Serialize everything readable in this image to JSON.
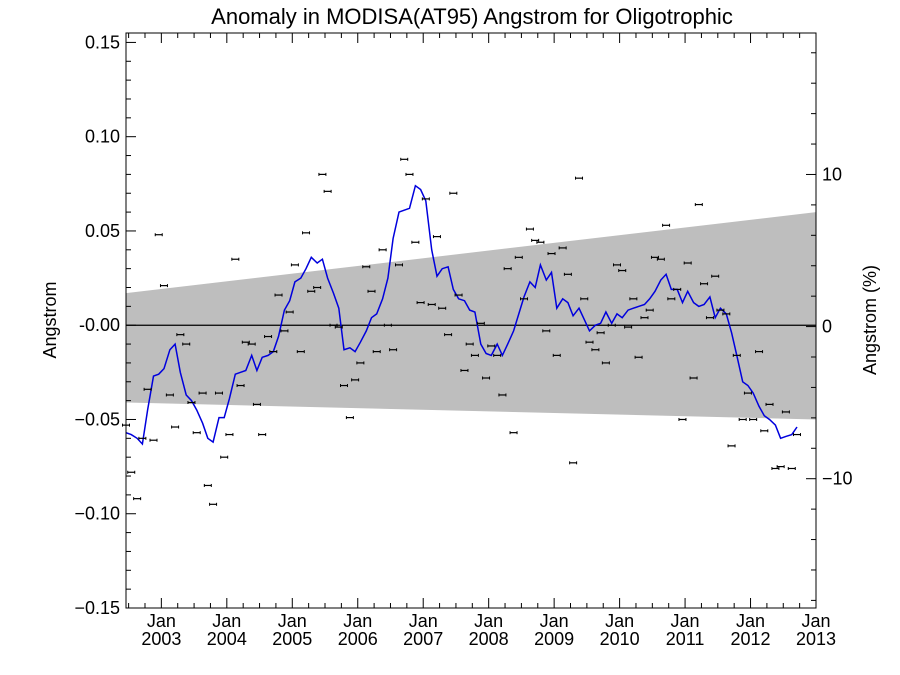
{
  "chart_data": {
    "type": "scatter",
    "title": "Anomaly in MODISA(AT95) Angstrom for Oligotrophic",
    "ylabel": "Angstrom",
    "y2label": "Angstrom (%)",
    "xlabel": "",
    "xlim": [
      2002.46,
      2013.0
    ],
    "ylim": [
      -0.15,
      0.155
    ],
    "y2lim": [
      -18.5,
      19.3
    ],
    "x_tick_labels": [
      {
        "month": "Jan",
        "year": "2003",
        "x": 2003.0
      },
      {
        "month": "Jan",
        "year": "2004",
        "x": 2004.0
      },
      {
        "month": "Jan",
        "year": "2005",
        "x": 2005.0
      },
      {
        "month": "Jan",
        "year": "2006",
        "x": 2006.0
      },
      {
        "month": "Jan",
        "year": "2007",
        "x": 2007.0
      },
      {
        "month": "Jan",
        "year": "2008",
        "x": 2008.0
      },
      {
        "month": "Jan",
        "year": "2009",
        "x": 2009.0
      },
      {
        "month": "Jan",
        "year": "2010",
        "x": 2010.0
      },
      {
        "month": "Jan",
        "year": "2011",
        "x": 2011.0
      },
      {
        "month": "Jan",
        "year": "2012",
        "x": 2012.0
      },
      {
        "month": "Jan",
        "year": "2013",
        "x": 2013.0
      }
    ],
    "y_ticks": [
      {
        "label": "0.15",
        "value": 0.15
      },
      {
        "label": "0.10",
        "value": 0.1
      },
      {
        "label": "0.05",
        "value": 0.05
      },
      {
        "label": "-0.00",
        "value": 0.0
      },
      {
        "label": "−0.05",
        "value": -0.05
      },
      {
        "label": "−0.10",
        "value": -0.1
      },
      {
        "label": "−0.15",
        "value": -0.15
      }
    ],
    "y2_ticks": [
      {
        "label": "10",
        "value": 10
      },
      {
        "label": "0",
        "value": 0
      },
      {
        "label": "−10",
        "value": -10
      }
    ],
    "zero_line": 0.0,
    "confidence_band": {
      "x": [
        2002.46,
        2013.0
      ],
      "upper": [
        0.017,
        0.06
      ],
      "lower": [
        -0.041,
        -0.05
      ],
      "color": "#bebebe"
    },
    "series": [
      {
        "kind": "points",
        "color": "#000000",
        "points": [
          [
            2002.46,
            -0.053
          ],
          [
            2002.54,
            -0.078
          ],
          [
            2002.63,
            -0.092
          ],
          [
            2002.71,
            -0.06
          ],
          [
            2002.79,
            -0.034
          ],
          [
            2002.88,
            -0.061
          ],
          [
            2002.96,
            0.048
          ],
          [
            2003.04,
            0.021
          ],
          [
            2003.13,
            -0.037
          ],
          [
            2003.21,
            -0.054
          ],
          [
            2003.29,
            -0.005
          ],
          [
            2003.38,
            -0.01
          ],
          [
            2003.46,
            -0.041
          ],
          [
            2003.54,
            -0.057
          ],
          [
            2003.63,
            -0.036
          ],
          [
            2003.71,
            -0.085
          ],
          [
            2003.79,
            -0.095
          ],
          [
            2003.88,
            -0.036
          ],
          [
            2003.96,
            -0.07
          ],
          [
            2004.04,
            -0.058
          ],
          [
            2004.13,
            0.035
          ],
          [
            2004.21,
            -0.032
          ],
          [
            2004.29,
            -0.009
          ],
          [
            2004.38,
            -0.01
          ],
          [
            2004.46,
            -0.042
          ],
          [
            2004.54,
            -0.058
          ],
          [
            2004.63,
            -0.006
          ],
          [
            2004.71,
            -0.014
          ],
          [
            2004.79,
            0.016
          ],
          [
            2004.88,
            -0.003
          ],
          [
            2004.96,
            0.007
          ],
          [
            2005.04,
            0.032
          ],
          [
            2005.13,
            -0.014
          ],
          [
            2005.21,
            0.049
          ],
          [
            2005.29,
            0.018
          ],
          [
            2005.38,
            0.02
          ],
          [
            2005.46,
            0.08
          ],
          [
            2005.54,
            0.071
          ],
          [
            2005.63,
            0.0
          ],
          [
            2005.71,
            -0.001
          ],
          [
            2005.79,
            -0.032
          ],
          [
            2005.88,
            -0.049
          ],
          [
            2005.96,
            -0.029
          ],
          [
            2006.04,
            -0.02
          ],
          [
            2006.13,
            0.031
          ],
          [
            2006.21,
            0.018
          ],
          [
            2006.29,
            -0.014
          ],
          [
            2006.38,
            0.04
          ],
          [
            2006.46,
            0.0
          ],
          [
            2006.54,
            -0.013
          ],
          [
            2006.63,
            0.032
          ],
          [
            2006.71,
            0.088
          ],
          [
            2006.79,
            0.08
          ],
          [
            2006.88,
            0.044
          ],
          [
            2006.96,
            0.012
          ],
          [
            2007.04,
            0.067
          ],
          [
            2007.13,
            0.011
          ],
          [
            2007.21,
            0.047
          ],
          [
            2007.29,
            0.009
          ],
          [
            2007.38,
            -0.005
          ],
          [
            2007.46,
            0.07
          ],
          [
            2007.54,
            0.016
          ],
          [
            2007.63,
            -0.024
          ],
          [
            2007.71,
            -0.01
          ],
          [
            2007.79,
            -0.016
          ],
          [
            2007.88,
            0.001
          ],
          [
            2007.96,
            -0.028
          ],
          [
            2008.04,
            -0.011
          ],
          [
            2008.13,
            -0.016
          ],
          [
            2008.21,
            -0.037
          ],
          [
            2008.29,
            0.03
          ],
          [
            2008.38,
            -0.057
          ],
          [
            2008.46,
            0.036
          ],
          [
            2008.54,
            0.014
          ],
          [
            2008.63,
            0.051
          ],
          [
            2008.71,
            0.045
          ],
          [
            2008.79,
            0.044
          ],
          [
            2008.88,
            -0.003
          ],
          [
            2008.96,
            0.038
          ],
          [
            2009.04,
            -0.016
          ],
          [
            2009.13,
            0.041
          ],
          [
            2009.21,
            0.027
          ],
          [
            2009.29,
            -0.073
          ],
          [
            2009.38,
            0.078
          ],
          [
            2009.46,
            0.014
          ],
          [
            2009.54,
            -0.009
          ],
          [
            2009.63,
            -0.013
          ],
          [
            2009.71,
            -0.004
          ],
          [
            2009.79,
            -0.02
          ],
          [
            2009.88,
            0.0
          ],
          [
            2009.96,
            0.032
          ],
          [
            2010.04,
            0.029
          ],
          [
            2010.13,
            -0.001
          ],
          [
            2010.21,
            0.014
          ],
          [
            2010.29,
            -0.017
          ],
          [
            2010.38,
            0.004
          ],
          [
            2010.46,
            0.008
          ],
          [
            2010.54,
            0.036
          ],
          [
            2010.63,
            0.035
          ],
          [
            2010.71,
            0.053
          ],
          [
            2010.79,
            0.014
          ],
          [
            2010.88,
            0.019
          ],
          [
            2010.96,
            -0.05
          ],
          [
            2011.04,
            0.033
          ],
          [
            2011.13,
            -0.028
          ],
          [
            2011.21,
            0.064
          ],
          [
            2011.29,
            0.022
          ],
          [
            2011.38,
            0.004
          ],
          [
            2011.46,
            0.026
          ],
          [
            2011.54,
            0.008
          ],
          [
            2011.63,
            0.006
          ],
          [
            2011.71,
            -0.064
          ],
          [
            2011.79,
            -0.016
          ],
          [
            2011.88,
            -0.05
          ],
          [
            2011.96,
            -0.036
          ],
          [
            2012.04,
            -0.05
          ],
          [
            2012.13,
            -0.014
          ],
          [
            2012.21,
            -0.056
          ],
          [
            2012.29,
            -0.042
          ],
          [
            2012.38,
            -0.076
          ],
          [
            2012.46,
            -0.075
          ],
          [
            2012.54,
            -0.046
          ],
          [
            2012.63,
            -0.076
          ],
          [
            2012.71,
            -0.058
          ]
        ]
      },
      {
        "kind": "line",
        "color": "#0000dd",
        "points": [
          [
            2002.46,
            -0.057
          ],
          [
            2002.54,
            -0.058
          ],
          [
            2002.63,
            -0.06
          ],
          [
            2002.71,
            -0.063
          ],
          [
            2002.79,
            -0.045
          ],
          [
            2002.88,
            -0.027
          ],
          [
            2002.96,
            -0.026
          ],
          [
            2003.04,
            -0.023
          ],
          [
            2003.13,
            -0.013
          ],
          [
            2003.21,
            -0.01
          ],
          [
            2003.29,
            -0.025
          ],
          [
            2003.38,
            -0.037
          ],
          [
            2003.46,
            -0.04
          ],
          [
            2003.54,
            -0.045
          ],
          [
            2003.63,
            -0.052
          ],
          [
            2003.71,
            -0.06
          ],
          [
            2003.79,
            -0.062
          ],
          [
            2003.88,
            -0.049
          ],
          [
            2003.96,
            -0.049
          ],
          [
            2004.04,
            -0.039
          ],
          [
            2004.13,
            -0.026
          ],
          [
            2004.21,
            -0.025
          ],
          [
            2004.29,
            -0.024
          ],
          [
            2004.38,
            -0.016
          ],
          [
            2004.46,
            -0.024
          ],
          [
            2004.54,
            -0.017
          ],
          [
            2004.63,
            -0.016
          ],
          [
            2004.71,
            -0.014
          ],
          [
            2004.79,
            -0.006
          ],
          [
            2004.88,
            0.008
          ],
          [
            2004.96,
            0.013
          ],
          [
            2005.04,
            0.023
          ],
          [
            2005.13,
            0.025
          ],
          [
            2005.21,
            0.03
          ],
          [
            2005.29,
            0.036
          ],
          [
            2005.38,
            0.033
          ],
          [
            2005.46,
            0.035
          ],
          [
            2005.54,
            0.025
          ],
          [
            2005.63,
            0.017
          ],
          [
            2005.71,
            0.009
          ],
          [
            2005.79,
            -0.013
          ],
          [
            2005.88,
            -0.012
          ],
          [
            2005.96,
            -0.014
          ],
          [
            2006.04,
            -0.009
          ],
          [
            2006.13,
            -0.003
          ],
          [
            2006.21,
            0.004
          ],
          [
            2006.29,
            0.006
          ],
          [
            2006.38,
            0.014
          ],
          [
            2006.46,
            0.025
          ],
          [
            2006.54,
            0.046
          ],
          [
            2006.63,
            0.06
          ],
          [
            2006.71,
            0.061
          ],
          [
            2006.79,
            0.062
          ],
          [
            2006.88,
            0.074
          ],
          [
            2006.96,
            0.072
          ],
          [
            2007.04,
            0.066
          ],
          [
            2007.13,
            0.04
          ],
          [
            2007.21,
            0.026
          ],
          [
            2007.29,
            0.03
          ],
          [
            2007.38,
            0.031
          ],
          [
            2007.46,
            0.019
          ],
          [
            2007.54,
            0.014
          ],
          [
            2007.63,
            0.013
          ],
          [
            2007.71,
            0.008
          ],
          [
            2007.79,
            0.007
          ],
          [
            2007.88,
            -0.01
          ],
          [
            2007.96,
            -0.015
          ],
          [
            2008.04,
            -0.016
          ],
          [
            2008.13,
            -0.01
          ],
          [
            2008.21,
            -0.016
          ],
          [
            2008.29,
            -0.01
          ],
          [
            2008.38,
            -0.003
          ],
          [
            2008.46,
            0.006
          ],
          [
            2008.54,
            0.015
          ],
          [
            2008.63,
            0.023
          ],
          [
            2008.71,
            0.02
          ],
          [
            2008.79,
            0.032
          ],
          [
            2008.88,
            0.024
          ],
          [
            2008.96,
            0.028
          ],
          [
            2009.04,
            0.009
          ],
          [
            2009.13,
            0.014
          ],
          [
            2009.21,
            0.012
          ],
          [
            2009.29,
            0.005
          ],
          [
            2009.38,
            0.009
          ],
          [
            2009.46,
            0.003
          ],
          [
            2009.54,
            -0.003
          ],
          [
            2009.63,
            0.0
          ],
          [
            2009.71,
            0.001
          ],
          [
            2009.79,
            0.007
          ],
          [
            2009.88,
            0.001
          ],
          [
            2009.96,
            0.006
          ],
          [
            2010.04,
            0.004
          ],
          [
            2010.13,
            0.008
          ],
          [
            2010.21,
            0.009
          ],
          [
            2010.29,
            0.01
          ],
          [
            2010.38,
            0.011
          ],
          [
            2010.46,
            0.014
          ],
          [
            2010.54,
            0.018
          ],
          [
            2010.63,
            0.024
          ],
          [
            2010.71,
            0.027
          ],
          [
            2010.79,
            0.019
          ],
          [
            2010.88,
            0.019
          ],
          [
            2010.96,
            0.012
          ],
          [
            2011.04,
            0.018
          ],
          [
            2011.13,
            0.012
          ],
          [
            2011.21,
            0.01
          ],
          [
            2011.29,
            0.011
          ],
          [
            2011.38,
            0.015
          ],
          [
            2011.46,
            0.004
          ],
          [
            2011.54,
            0.009
          ],
          [
            2011.63,
            0.006
          ],
          [
            2011.71,
            -0.004
          ],
          [
            2011.79,
            -0.016
          ],
          [
            2011.88,
            -0.03
          ],
          [
            2011.96,
            -0.032
          ],
          [
            2012.04,
            -0.036
          ],
          [
            2012.13,
            -0.043
          ],
          [
            2012.21,
            -0.048
          ],
          [
            2012.29,
            -0.05
          ],
          [
            2012.38,
            -0.053
          ],
          [
            2012.46,
            -0.06
          ],
          [
            2012.54,
            -0.059
          ],
          [
            2012.63,
            -0.058
          ],
          [
            2012.71,
            -0.054
          ]
        ]
      }
    ]
  }
}
